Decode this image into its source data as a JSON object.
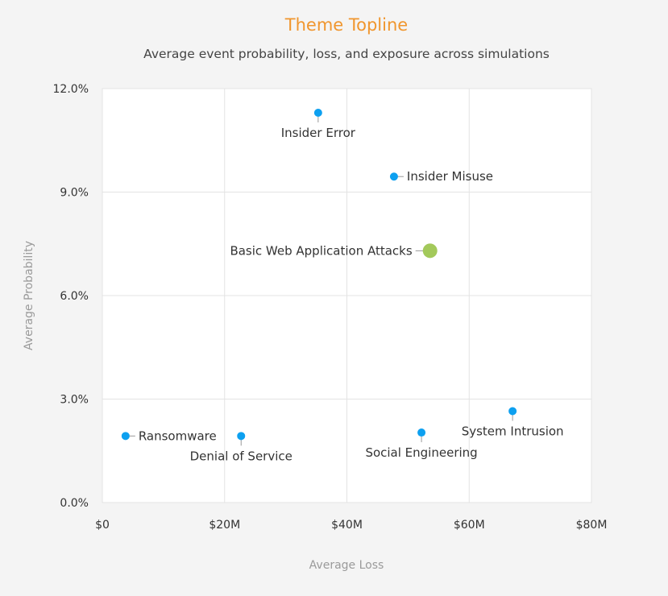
{
  "chart_data": {
    "type": "scatter",
    "title": "Theme Topline",
    "subtitle": "Average event probability, loss, and exposure across simulations",
    "xlabel": "Average Loss",
    "ylabel": "Average Probability",
    "xlim": [
      0,
      80000000
    ],
    "ylim": [
      0,
      0.12
    ],
    "x_ticks": [
      {
        "value": 0,
        "label": "$0"
      },
      {
        "value": 20000000,
        "label": "$20M"
      },
      {
        "value": 40000000,
        "label": "$40M"
      },
      {
        "value": 60000000,
        "label": "$60M"
      },
      {
        "value": 80000000,
        "label": "$80M"
      }
    ],
    "y_ticks": [
      {
        "value": 0,
        "label": "0.0%"
      },
      {
        "value": 0.03,
        "label": "3.0%"
      },
      {
        "value": 0.06,
        "label": "6.0%"
      },
      {
        "value": 0.09,
        "label": "9.0%"
      },
      {
        "value": 0.12,
        "label": "12.0%"
      }
    ],
    "grid": true,
    "colors": {
      "title": "#f0962e",
      "point": "#0da0f0",
      "highlight": "#a3c95b",
      "grid": "#e3e3e3",
      "plot_bg": "#ffffff",
      "connector": "#999999"
    },
    "points": [
      {
        "name": "Insider Error",
        "x": 35300000,
        "y": 0.113,
        "highlight": false,
        "label_pos": "below"
      },
      {
        "name": "Insider Misuse",
        "x": 47700000,
        "y": 0.0945,
        "highlight": false,
        "label_pos": "right"
      },
      {
        "name": "Basic Web Application Attacks",
        "x": 53600000,
        "y": 0.073,
        "highlight": true,
        "label_pos": "left"
      },
      {
        "name": "System Intrusion",
        "x": 67100000,
        "y": 0.0265,
        "highlight": false,
        "label_pos": "below"
      },
      {
        "name": "Social Engineering",
        "x": 52200000,
        "y": 0.0203,
        "highlight": false,
        "label_pos": "below"
      },
      {
        "name": "Denial of Service",
        "x": 22700000,
        "y": 0.0193,
        "highlight": false,
        "label_pos": "below"
      },
      {
        "name": "Ransomware",
        "x": 3800000,
        "y": 0.0193,
        "highlight": false,
        "label_pos": "right"
      }
    ]
  }
}
